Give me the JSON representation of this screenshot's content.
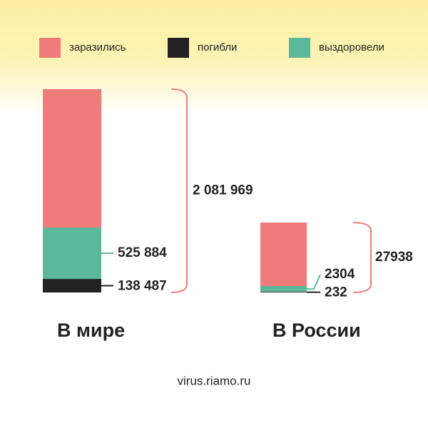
{
  "chart_data": {
    "type": "bar",
    "categories": [
      "В мире",
      "В России"
    ],
    "series": [
      {
        "name": "заразились",
        "color": "#f07b7b",
        "values": [
          2081969,
          27938
        ],
        "value_labels": [
          "2 081 969",
          "27938"
        ]
      },
      {
        "name": "погибли",
        "color": "#222222",
        "values": [
          138487,
          232
        ],
        "value_labels": [
          "138 487",
          "232"
        ]
      },
      {
        "name": "выздоровели",
        "color": "#5bb89b",
        "values": [
          525884,
          2304
        ],
        "value_labels": [
          "525 884",
          "2304"
        ]
      }
    ],
    "source": "virus.riamo.ru"
  }
}
